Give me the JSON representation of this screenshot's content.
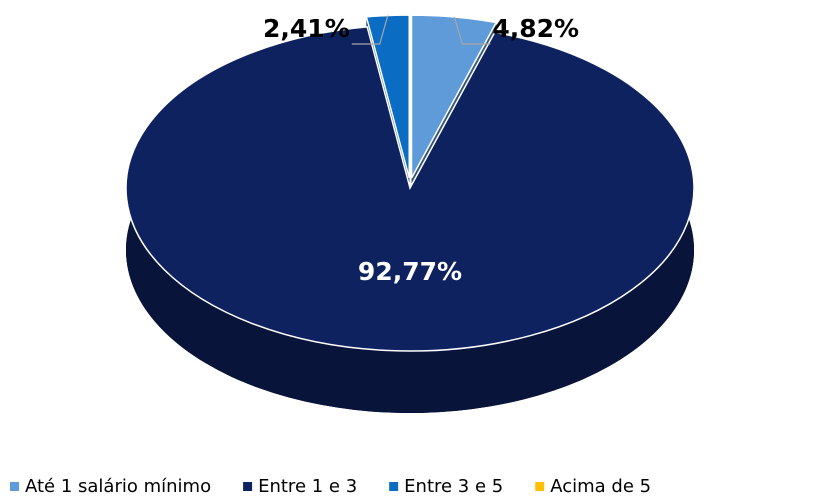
{
  "chart_data": {
    "type": "pie3d",
    "categories": [
      "Até 1 salário mínimo",
      "Entre 1 e 3",
      "Entre 3 e 5",
      "Acima de 5"
    ],
    "values": [
      4.82,
      92.77,
      2.41,
      0
    ],
    "value_labels": [
      "4,82%",
      "92,77%",
      "2,41%",
      null
    ],
    "colors": [
      "#5f9bd9",
      "#0e2260",
      "#0b6cc4",
      "#ffc000"
    ],
    "legend": "bottom"
  }
}
